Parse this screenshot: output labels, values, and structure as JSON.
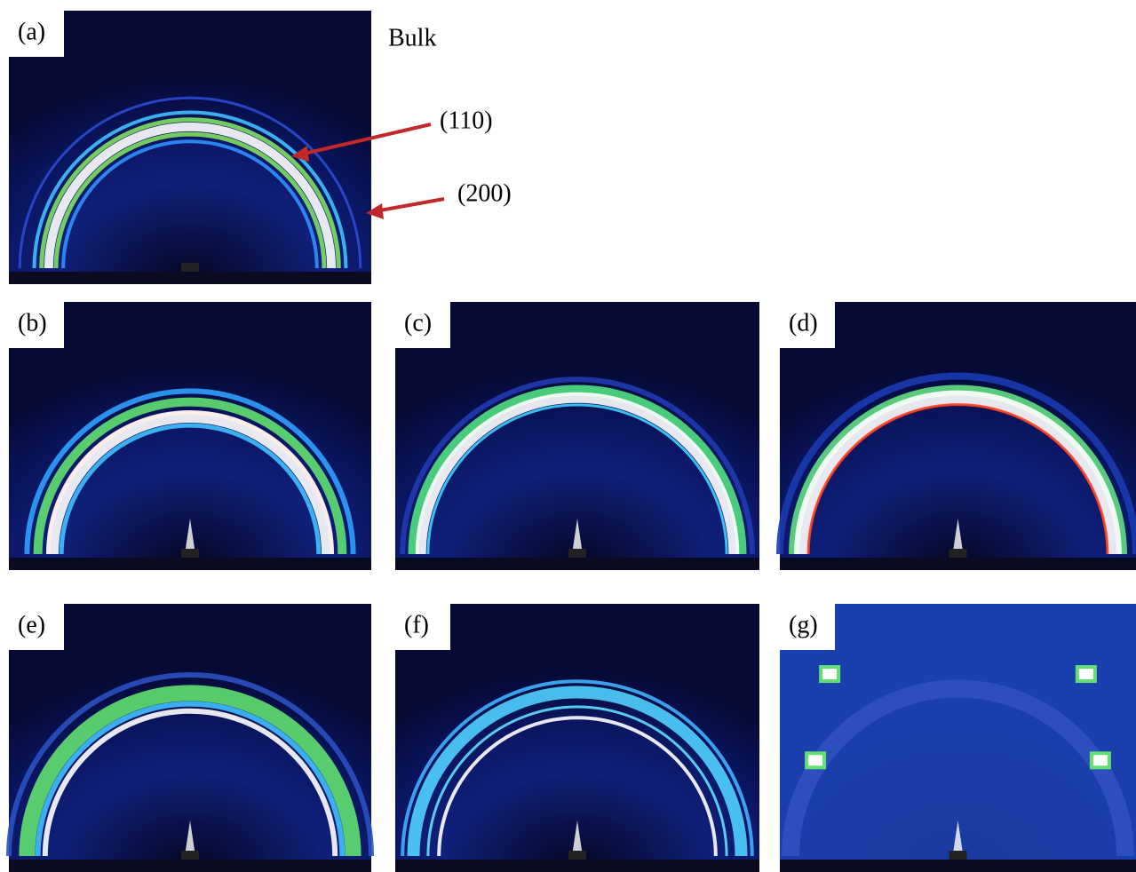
{
  "figure": {
    "panels": [
      {
        "label": "(a)",
        "caption": "Bulk",
        "annotations": [
          "(110)",
          "(200)"
        ]
      },
      {
        "label": "(b)"
      },
      {
        "label": "(c)"
      },
      {
        "label": "(d)"
      },
      {
        "label": "(e)"
      },
      {
        "label": "(f)"
      },
      {
        "label": "(g)"
      }
    ]
  }
}
